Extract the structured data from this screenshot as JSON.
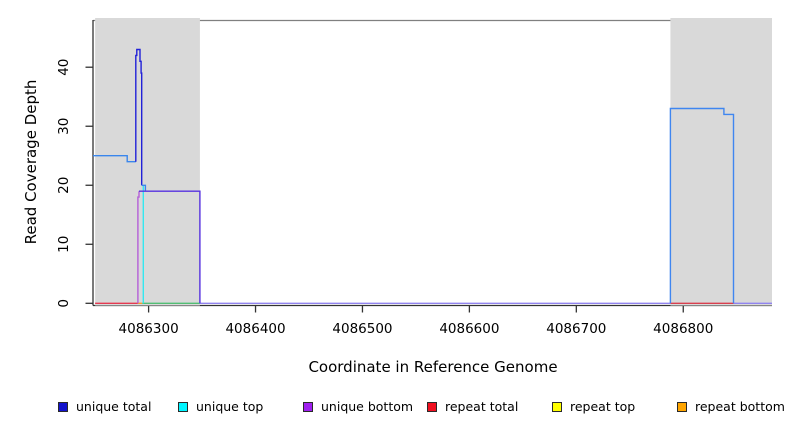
{
  "chart_data": {
    "type": "line",
    "title": "",
    "xlabel": "Coordinate in Reference Genome",
    "ylabel": "Read Coverage Depth",
    "xlim": [
      4086248,
      4086883
    ],
    "ylim": [
      0,
      48
    ],
    "x_ticks": [
      4086300,
      4086400,
      4086500,
      4086600,
      4086700,
      4086800
    ],
    "y_ticks": [
      0,
      10,
      20,
      30,
      40
    ],
    "grid": false,
    "legend_position": "bottom",
    "background": "#ffffff",
    "region_fill": "#d9d9d9",
    "axis_color": "#333333",
    "top_border_color": "#808080",
    "repeat_regions": [
      {
        "start": 4086250,
        "end": 4086348
      },
      {
        "start": 4086788,
        "end": 4086883
      }
    ],
    "paths": [
      {
        "name": "baseline-left-repeat-total",
        "series": "repeat total",
        "color": "#e53a52",
        "points": [
          [
            4086250,
            0
          ],
          [
            4086290,
            0
          ]
        ]
      },
      {
        "name": "baseline-left-repeat-bottom",
        "series": "repeat bottom",
        "color": "#f59e2e",
        "points": [
          [
            4086290,
            0
          ],
          [
            4086294,
            0
          ]
        ]
      },
      {
        "name": "baseline-left-unique-top",
        "series": "unique top",
        "color": "#52be74",
        "points": [
          [
            4086294,
            0
          ],
          [
            4086348,
            0
          ]
        ]
      },
      {
        "name": "baseline-middle",
        "series": "unique bottom",
        "color": "#9184ef",
        "points": [
          [
            4086348,
            0
          ],
          [
            4086788,
            0
          ]
        ]
      },
      {
        "name": "baseline-right-repeat-total",
        "series": "repeat total",
        "color": "#d9404f",
        "points": [
          [
            4086788,
            0
          ],
          [
            4086847,
            0
          ]
        ]
      },
      {
        "name": "baseline-right-tail",
        "series": "unique bottom",
        "color": "#9184ef",
        "points": [
          [
            4086847,
            0
          ],
          [
            4086883,
            0
          ]
        ]
      },
      {
        "name": "unique-bottom-rise",
        "series": "unique bottom",
        "color": "#b55fd8",
        "points": [
          [
            4086290,
            0
          ],
          [
            4086290,
            18
          ],
          [
            4086291,
            18
          ],
          [
            4086291,
            19
          ]
        ]
      },
      {
        "name": "unique-top-fall",
        "series": "unique top",
        "color": "#33e8f0",
        "points": [
          [
            4086295,
            20
          ],
          [
            4086295,
            0
          ]
        ]
      },
      {
        "name": "unique-total-left",
        "series": "unique total",
        "color": "#3a86ec",
        "points": [
          [
            4086248,
            25
          ],
          [
            4086280,
            25
          ],
          [
            4086280,
            24
          ],
          [
            4086288,
            24
          ]
        ]
      },
      {
        "name": "unique-total-spike",
        "series": "unique total",
        "color": "#2121d8",
        "points": [
          [
            4086288,
            24
          ],
          [
            4086288,
            42
          ],
          [
            4086289,
            42
          ],
          [
            4086289,
            43
          ],
          [
            4086292,
            43
          ],
          [
            4086292,
            41
          ],
          [
            4086293,
            41
          ],
          [
            4086293,
            39
          ],
          [
            4086293.5,
            39
          ],
          [
            4086293.5,
            20
          ]
        ]
      },
      {
        "name": "unique-total-shoulder",
        "series": "unique total",
        "color": "#3a86ec",
        "points": [
          [
            4086293.5,
            20
          ],
          [
            4086297,
            20
          ],
          [
            4086297,
            19
          ]
        ]
      },
      {
        "name": "unique-plateau-19",
        "series": "unique bottom",
        "color": "#5531e0",
        "points": [
          [
            4086291,
            19
          ],
          [
            4086348,
            19
          ],
          [
            4086348,
            0
          ]
        ]
      },
      {
        "name": "unique-total-right-block",
        "series": "unique total",
        "color": "#3f86f0",
        "points": [
          [
            4086788,
            0
          ],
          [
            4086788,
            33
          ],
          [
            4086838,
            33
          ],
          [
            4086838,
            32
          ],
          [
            4086847,
            32
          ],
          [
            4086847,
            0
          ]
        ]
      }
    ],
    "legend": [
      {
        "label": "unique total",
        "color": "#1212cc"
      },
      {
        "label": "unique top",
        "color": "#00f5ff"
      },
      {
        "label": "unique bottom",
        "color": "#a020f0"
      },
      {
        "label": "repeat total",
        "color": "#f01020"
      },
      {
        "label": "repeat top",
        "color": "#ffff00"
      },
      {
        "label": "repeat bottom",
        "color": "#ffa500"
      }
    ]
  }
}
